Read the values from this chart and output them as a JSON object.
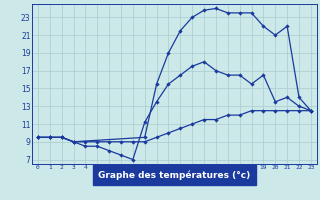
{
  "bg_color": "#cce8e8",
  "plot_bg_color": "#cce8e8",
  "axis_bar_color": "#1a3a9e",
  "line_color": "#1a3a9e",
  "grid_color": "#a8cccc",
  "xlabel": "Graphe des températures (°c)",
  "xlabel_color": "#ffffff",
  "xlabel_bg": "#1a3a9e",
  "xlim": [
    -0.5,
    23.5
  ],
  "ylim": [
    6.5,
    24.5
  ],
  "xticks": [
    0,
    1,
    2,
    3,
    4,
    5,
    6,
    7,
    8,
    9,
    10,
    11,
    12,
    13,
    14,
    15,
    16,
    17,
    18,
    19,
    20,
    21,
    22,
    23
  ],
  "yticks": [
    7,
    9,
    11,
    13,
    15,
    17,
    19,
    21,
    23
  ],
  "curve1_x": [
    0,
    1,
    2,
    3,
    4,
    5,
    6,
    7,
    8,
    9,
    10,
    11,
    12,
    13,
    14,
    15,
    16,
    17,
    18,
    19,
    20,
    21,
    22,
    23
  ],
  "curve1_y": [
    9.5,
    9.5,
    9.5,
    9.0,
    9.0,
    9.0,
    9.0,
    9.0,
    9.0,
    9.0,
    9.5,
    10.0,
    10.5,
    11.0,
    11.5,
    11.5,
    12.0,
    12.0,
    12.5,
    12.5,
    12.5,
    12.5,
    12.5,
    12.5
  ],
  "curve2_x": [
    0,
    1,
    2,
    3,
    4,
    5,
    6,
    7,
    8,
    9,
    10,
    11,
    12,
    13,
    14,
    15,
    16,
    17,
    18,
    19,
    20,
    21,
    22,
    23
  ],
  "curve2_y": [
    9.5,
    9.5,
    9.5,
    9.0,
    8.5,
    8.5,
    8.0,
    7.5,
    7.0,
    11.2,
    13.5,
    15.5,
    16.5,
    17.5,
    18.0,
    17.0,
    16.5,
    16.5,
    15.5,
    16.5,
    13.5,
    14.0,
    13.0,
    12.5
  ],
  "curve3_x": [
    0,
    1,
    2,
    3,
    9,
    10,
    11,
    12,
    13,
    14,
    15,
    16,
    17,
    18,
    19,
    20,
    21,
    22,
    23
  ],
  "curve3_y": [
    9.5,
    9.5,
    9.5,
    9.0,
    9.5,
    15.5,
    19.0,
    21.5,
    23.0,
    23.8,
    24.0,
    23.5,
    23.5,
    23.5,
    22.0,
    21.0,
    22.0,
    14.0,
    12.5
  ]
}
